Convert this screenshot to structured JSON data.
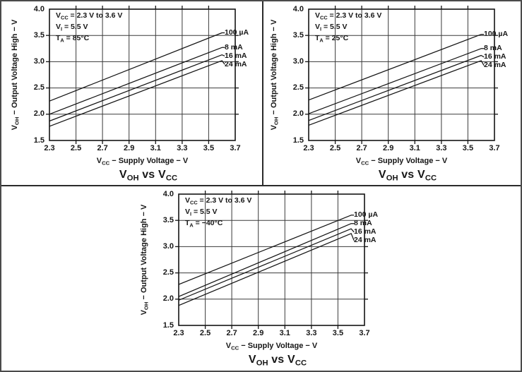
{
  "figure": {
    "background": "#ffffff",
    "border_color": "#4b4b4b",
    "divider_color": "#2b2b2b",
    "grid_color": "#3a3a3a",
    "line_color": "#141414",
    "text_color": "#161616"
  },
  "chart_data": [
    {
      "type": "line",
      "title": "V_{OH} vs V_{CC}",
      "xlabel": "V_{CC} − Supply Voltage − V",
      "ylabel": "V_{OH} − Output Voltage High − V",
      "xlim": [
        2.3,
        3.7
      ],
      "ylim": [
        1.5,
        4.0
      ],
      "xticks": [
        2.3,
        2.5,
        2.7,
        2.9,
        3.1,
        3.3,
        3.5,
        3.7
      ],
      "yticks": [
        1.5,
        2.0,
        2.5,
        3.0,
        3.5,
        4.0
      ],
      "grid": true,
      "legend_position": "labels-at-right-edge",
      "annotation": [
        "V_{CC} = 2.3 V to 3.6 V",
        "V_{I} = 5.5 V",
        "T_{A} = 85°C"
      ],
      "series": [
        {
          "name": "100 µA",
          "x": [
            2.3,
            3.6
          ],
          "y": [
            2.25,
            3.55
          ]
        },
        {
          "name": "8 mA",
          "x": [
            2.3,
            3.6
          ],
          "y": [
            2.0,
            3.27
          ]
        },
        {
          "name": "16 mA",
          "x": [
            2.3,
            3.6
          ],
          "y": [
            1.87,
            3.13
          ]
        },
        {
          "name": "24 mA",
          "x": [
            2.3,
            3.6
          ],
          "y": [
            1.77,
            3.02
          ]
        }
      ]
    },
    {
      "type": "line",
      "title": "V_{OH} vs V_{CC}",
      "xlabel": "V_{CC} − Supply Voltage − V",
      "ylabel": "V_{OH} − Output Voltage High − V",
      "xlim": [
        2.3,
        3.7
      ],
      "ylim": [
        1.5,
        4.0
      ],
      "xticks": [
        2.3,
        2.5,
        2.7,
        2.9,
        3.1,
        3.3,
        3.5,
        3.7
      ],
      "yticks": [
        1.5,
        2.0,
        2.5,
        3.0,
        3.5,
        4.0
      ],
      "grid": true,
      "legend_position": "labels-at-right-edge",
      "annotation": [
        "V_{CC} = 2.3 V to 3.6 V",
        "V_{I} = 5.5 V",
        "T_{A} = 25°C"
      ],
      "series": [
        {
          "name": "100 µA",
          "x": [
            2.3,
            3.6
          ],
          "y": [
            2.27,
            3.52
          ]
        },
        {
          "name": "8 mA",
          "x": [
            2.3,
            3.6
          ],
          "y": [
            2.01,
            3.25
          ]
        },
        {
          "name": "16 mA",
          "x": [
            2.3,
            3.6
          ],
          "y": [
            1.88,
            3.12
          ]
        },
        {
          "name": "24 mA",
          "x": [
            2.3,
            3.6
          ],
          "y": [
            1.79,
            3.02
          ]
        }
      ]
    },
    {
      "type": "line",
      "title": "V_{OH} vs V_{CC}",
      "xlabel": "V_{CC} − Supply Voltage − V",
      "ylabel": "V_{OH} − Output Voltage High − V",
      "xlim": [
        2.3,
        3.7
      ],
      "ylim": [
        1.5,
        4.0
      ],
      "xticks": [
        2.3,
        2.5,
        2.7,
        2.9,
        3.1,
        3.3,
        3.5,
        3.7
      ],
      "yticks": [
        1.5,
        2.0,
        2.5,
        3.0,
        3.5,
        4.0
      ],
      "grid": true,
      "legend_position": "labels-at-right-edge",
      "annotation": [
        "V_{CC} = 2.3 V to 3.6 V",
        "V_{I} = 5.5 V",
        "T_{A} = −40°C"
      ],
      "series": [
        {
          "name": "100 µA",
          "x": [
            2.3,
            3.6
          ],
          "y": [
            2.28,
            3.6
          ]
        },
        {
          "name": "8 mA",
          "x": [
            2.3,
            3.6
          ],
          "y": [
            2.05,
            3.44
          ]
        },
        {
          "name": "16 mA",
          "x": [
            2.3,
            3.6
          ],
          "y": [
            1.98,
            3.34
          ]
        },
        {
          "name": "24 mA",
          "x": [
            2.3,
            3.6
          ],
          "y": [
            1.88,
            3.25
          ]
        }
      ]
    }
  ]
}
